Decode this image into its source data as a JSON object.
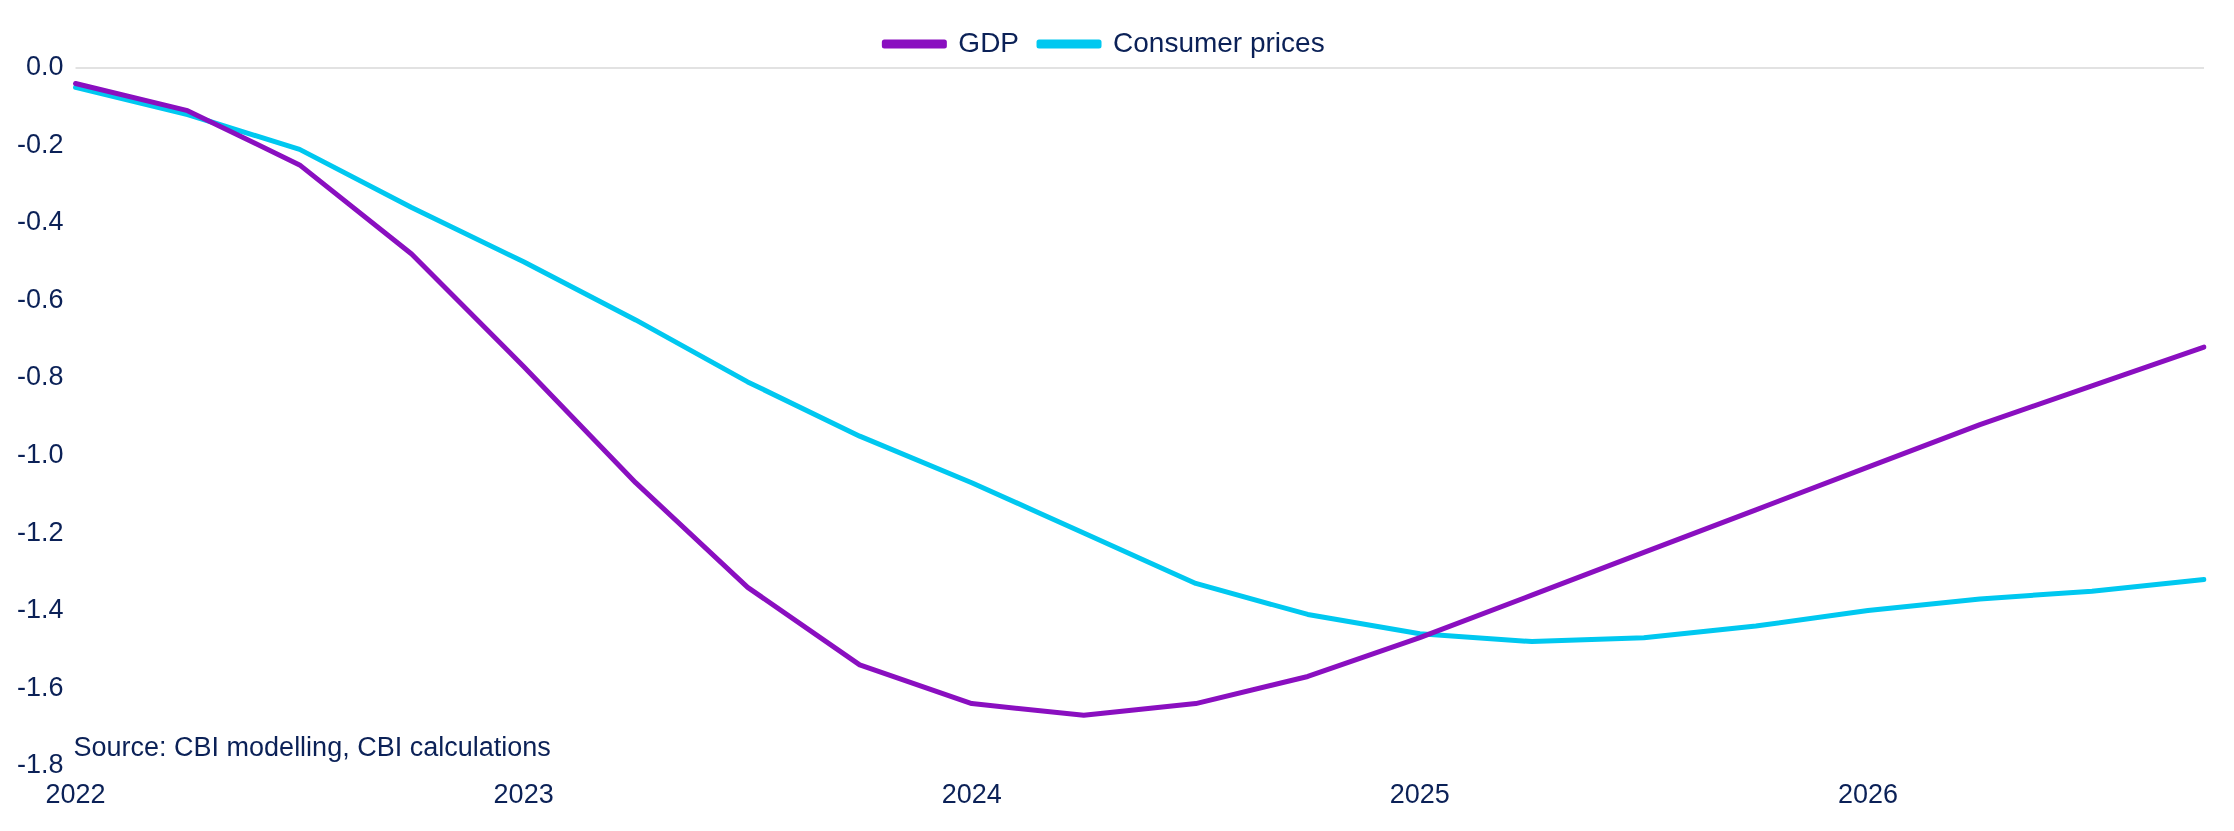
{
  "chart_data": {
    "type": "line",
    "categories": [
      "2022",
      null,
      null,
      null,
      "2023",
      null,
      null,
      null,
      "2024",
      null,
      null,
      null,
      "2025",
      null,
      null,
      null,
      "2026",
      null,
      null,
      null
    ],
    "series": [
      {
        "name": "GDP",
        "color": "#8a0fc0",
        "values": [
          -0.04,
          -0.11,
          -0.25,
          -0.48,
          -0.77,
          -1.07,
          -1.34,
          -1.54,
          -1.64,
          -1.67,
          -1.64,
          -1.57,
          -1.47,
          -1.36,
          -1.25,
          -1.14,
          -1.03,
          -0.92,
          -0.82,
          -0.72
        ]
      },
      {
        "name": "Consumer prices",
        "color": "#00c8f0",
        "values": [
          -0.05,
          -0.12,
          -0.21,
          -0.36,
          -0.5,
          -0.65,
          -0.81,
          -0.95,
          -1.07,
          -1.2,
          -1.33,
          -1.41,
          -1.46,
          -1.48,
          -1.47,
          -1.44,
          -1.4,
          -1.37,
          -1.35,
          -1.32
        ]
      }
    ],
    "ylim": [
      -1.8,
      0
    ],
    "yticks": [
      {
        "value": 0,
        "label": "0.0"
      },
      -0.2,
      -0.4,
      -0.6,
      -0.8,
      {
        "value": -1,
        "label": "-1.0"
      },
      -1.2,
      -1.4,
      -1.6,
      -1.8
    ],
    "ref_lines": [
      {
        "axis": "y",
        "value": 0,
        "label": null,
        "color": "#d9d9d9"
      }
    ],
    "grid": false,
    "legend": "top",
    "marker": "none",
    "line_style": "solid",
    "annotations": [
      "Source: CBI modelling, CBI calculations"
    ]
  }
}
